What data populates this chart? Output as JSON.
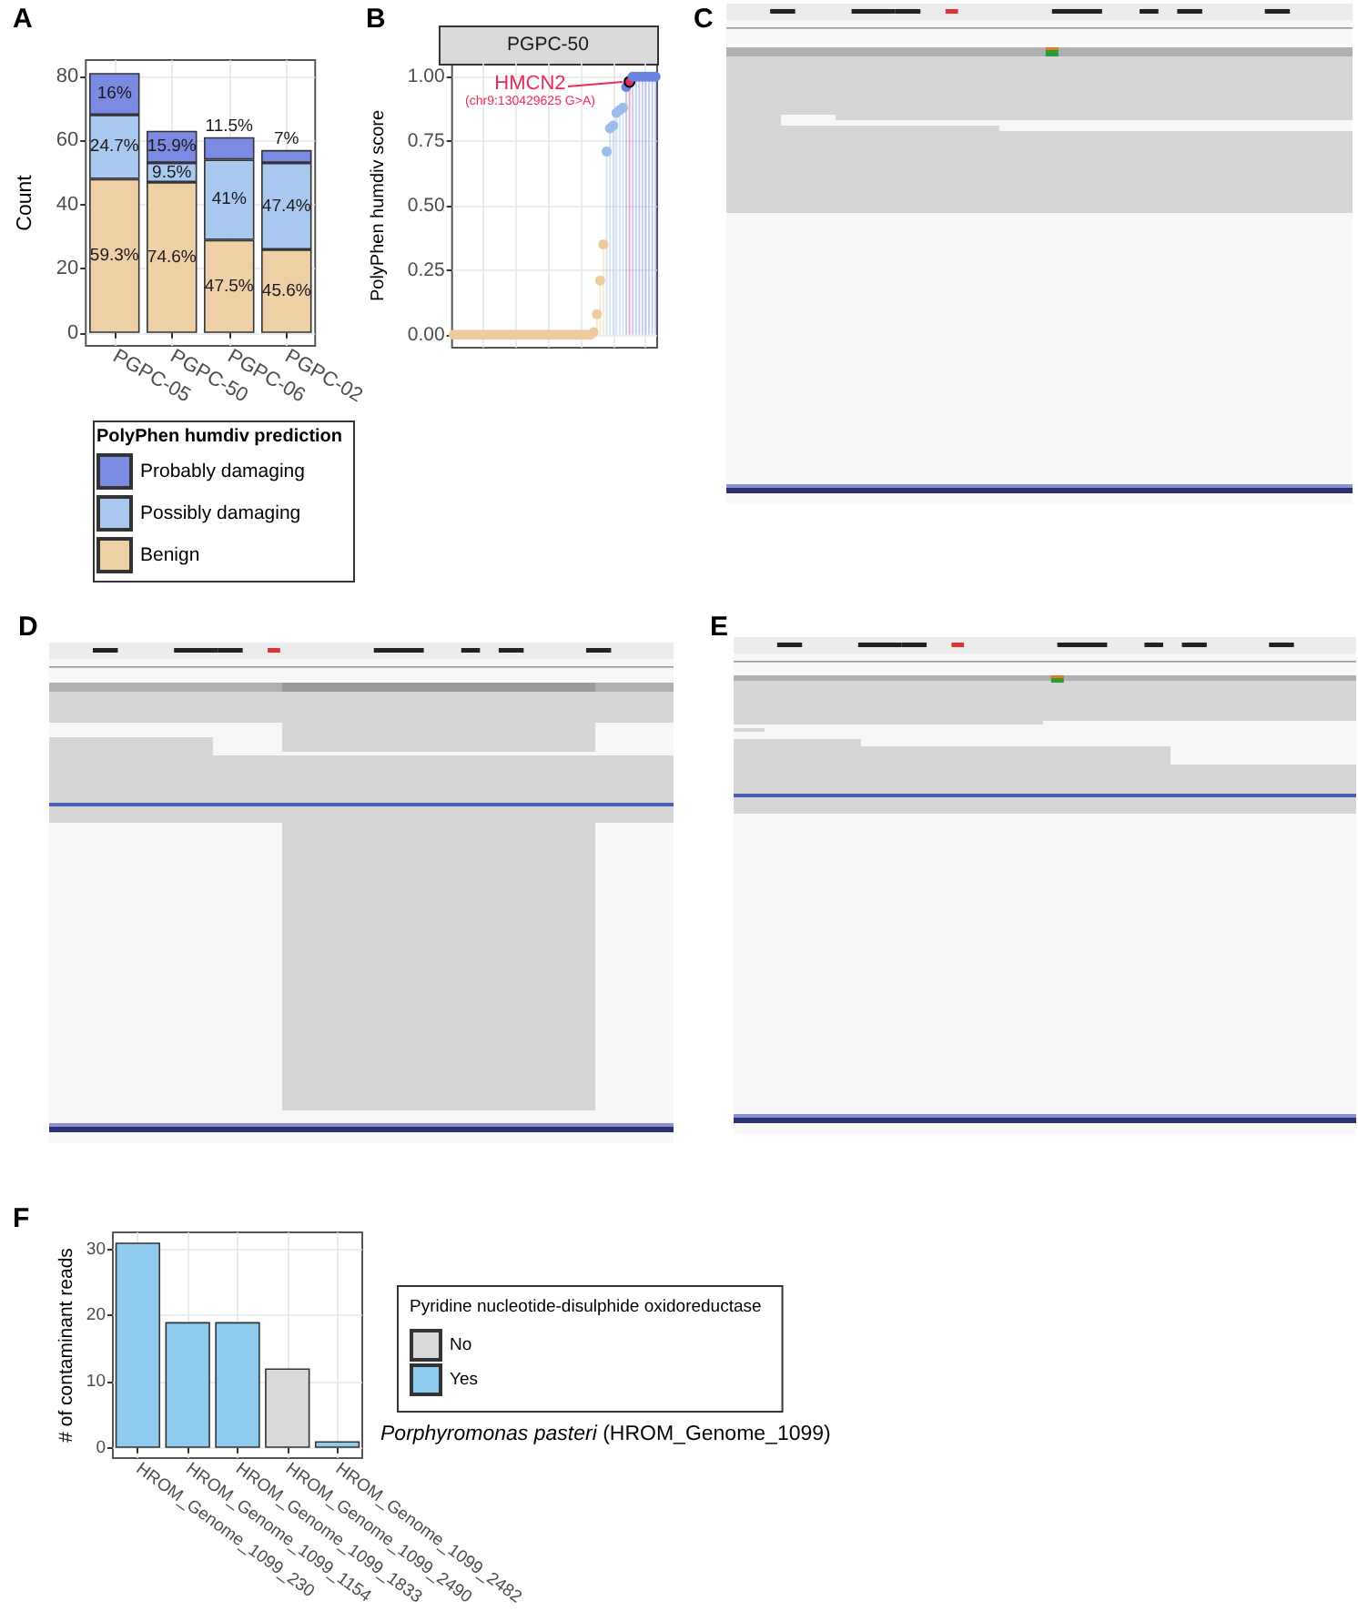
{
  "chart_data": [
    {
      "type": "bar",
      "title": "A",
      "categories": [
        "PGPC-05",
        "PGPC-50",
        "PGPC-06",
        "PGPC-02"
      ],
      "ylabel": "Count",
      "legend_title": "PolyPhen humdiv prediction",
      "stacked": true,
      "series": [
        {
          "name": "Benign",
          "color": "#efcfa6",
          "values": [
            48,
            47,
            29,
            26
          ]
        },
        {
          "name": "Possibly damaging",
          "color": "#a9c8ef",
          "values": [
            20,
            6,
            25,
            27
          ]
        },
        {
          "name": "Probably damaging",
          "color": "#7b8ae2",
          "values": [
            13,
            10,
            7,
            4
          ]
        }
      ],
      "ylim": [
        -4.05,
        85.05
      ],
      "yticks": [
        0,
        20,
        40,
        60,
        80
      ],
      "grid": true,
      "legend": "bottom",
      "annotations": [
        "59.3%",
        "24.7%",
        "16%",
        "74.6%",
        "9.5%",
        "15.9%",
        "47.5%",
        "41%",
        "11.5%",
        "45.6%",
        "47.4%",
        "7%"
      ]
    },
    {
      "type": "lollipop",
      "title": "B",
      "subtitle": "PGPC-50",
      "ylabel": "PolyPhen humdiv score",
      "categories": [
        null,
        null,
        null,
        null,
        null,
        null,
        null,
        null,
        null,
        null,
        null,
        null,
        null,
        null,
        null,
        null,
        null,
        null,
        null,
        null,
        null,
        null,
        null,
        null,
        null,
        null,
        null,
        null,
        null,
        null,
        null,
        null,
        null,
        null,
        null,
        null,
        null,
        null,
        null,
        null,
        null,
        null,
        null,
        null,
        null,
        null,
        null,
        null,
        null,
        null,
        null,
        null,
        null,
        null,
        null,
        null,
        null,
        null,
        null,
        null,
        null,
        null,
        null
      ],
      "values": [
        0,
        0,
        0,
        0,
        0,
        0,
        0,
        0,
        0,
        0,
        0,
        0,
        0,
        0,
        0,
        0,
        0,
        0,
        0,
        0,
        0,
        0,
        0,
        0,
        0,
        0,
        0,
        0,
        0,
        0,
        0,
        0,
        0,
        0,
        0,
        0,
        0,
        0,
        0,
        0,
        0,
        0,
        0,
        0.01,
        0.08,
        0.21,
        0.35,
        0.71,
        0.8,
        0.81,
        0.86,
        0.87,
        0.88,
        0.96,
        0.98,
        1,
        1,
        1,
        1,
        1,
        1,
        1,
        1
      ],
      "colors": [
        "#eecb9f",
        "#eecb9f",
        "#eecb9f",
        "#eecb9f",
        "#eecb9f",
        "#eecb9f",
        "#eecb9f",
        "#eecb9f",
        "#eecb9f",
        "#eecb9f",
        "#eecb9f",
        "#eecb9f",
        "#eecb9f",
        "#eecb9f",
        "#eecb9f",
        "#eecb9f",
        "#eecb9f",
        "#eecb9f",
        "#eecb9f",
        "#eecb9f",
        "#eecb9f",
        "#eecb9f",
        "#eecb9f",
        "#eecb9f",
        "#eecb9f",
        "#eecb9f",
        "#eecb9f",
        "#eecb9f",
        "#eecb9f",
        "#eecb9f",
        "#eecb9f",
        "#eecb9f",
        "#eecb9f",
        "#eecb9f",
        "#eecb9f",
        "#eecb9f",
        "#eecb9f",
        "#eecb9f",
        "#eecb9f",
        "#eecb9f",
        "#eecb9f",
        "#eecb9f",
        "#eecb9f",
        "#eecb9f",
        "#eecb9f",
        "#eecb9f",
        "#eecb9f",
        "#9cbcee",
        "#9cbcee",
        "#9cbcee",
        "#9cbcee",
        "#9cbcee",
        "#9cbcee",
        "#6d82e1",
        "#ec2a57",
        "#6d82e1",
        "#6d82e1",
        "#6d82e1",
        "#6d82e1",
        "#6d82e1",
        "#6d82e1",
        "#6d82e1",
        "#6d82e1"
      ],
      "marker": "circle",
      "ylim": [
        -0.05,
        1.05
      ],
      "yticks": [
        {
          "value": 0,
          "label": "0.00"
        },
        {
          "value": 0.25,
          "label": "0.25"
        },
        {
          "value": 0.5,
          "label": "0.50"
        },
        {
          "value": 0.75,
          "label": "0.75"
        },
        {
          "value": 1,
          "label": "1.00"
        }
      ],
      "grid": true,
      "annotations": [
        "HMCN2",
        "(chr9:130429625 G>A)"
      ]
    },
    {
      "type": "other",
      "title": "C"
    },
    {
      "type": "other",
      "title": "D"
    },
    {
      "type": "other",
      "title": "E"
    },
    {
      "type": "bar",
      "title": "F",
      "categories": [
        "HROM_Genome_1099_230",
        "HROM_Genome_1099_1154",
        "HROM_Genome_1099_1833",
        "HROM_Genome_1099_2490",
        "HROM_Genome_1099_2482"
      ],
      "ylabel": "# of contaminant reads",
      "legend_title": "Pyridine nucleotide-disulphide oxidoreductase",
      "series": [
        {
          "name": "No",
          "color": "#d9d9d9",
          "values": [
            null,
            null,
            null,
            12,
            null
          ]
        },
        {
          "name": "Yes",
          "color": "#8ecbef",
          "values": [
            31,
            19,
            19,
            null,
            1
          ]
        }
      ],
      "ylim": [
        -1.55,
        32.55
      ],
      "yticks": [
        0,
        10,
        20,
        30
      ],
      "grid": true,
      "legend": "right",
      "annotations": [
        "Porphyromonas pasteri (HROM_Genome_1099)"
      ]
    }
  ]
}
